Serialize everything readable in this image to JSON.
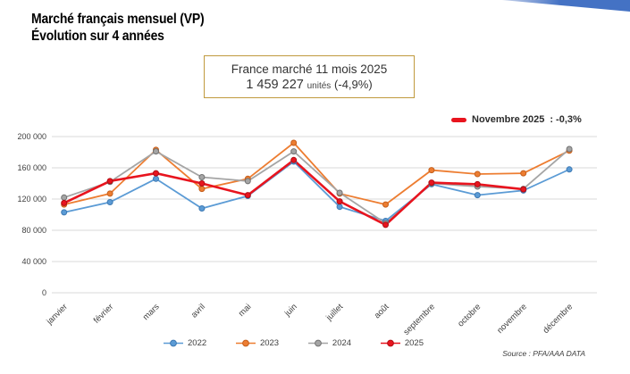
{
  "header": {
    "title_line1": "Marché français mensuel (VP)",
    "title_line2": "Évolution sur 4 années"
  },
  "info_box": {
    "line1": "France marché 11 mois 2025",
    "value": "1 459 227",
    "unit": "unités",
    "delta": "(-4,9%)"
  },
  "highlight_legend": {
    "label": "Novembre 2025",
    "value": ": -0,3%",
    "color": "#e8141e"
  },
  "source": "Source : PFA/AAA DATA",
  "decoration": {
    "corner_color": "#4472c4"
  },
  "chart_data": {
    "type": "line",
    "title": "",
    "xlabel": "",
    "ylabel": "",
    "grid": true,
    "legend_position": "bottom",
    "ylim": [
      0,
      200000
    ],
    "ytick_step": 40000,
    "ytick_labels": [
      "0",
      "40 000",
      "80 000",
      "120 000",
      "160 000",
      "200 000"
    ],
    "categories": [
      "janvier",
      "février",
      "mars",
      "avril",
      "mai",
      "juin",
      "juillet",
      "août",
      "septembre",
      "octobre",
      "novembre",
      "décembre"
    ],
    "series": [
      {
        "name": "2022",
        "color": "#5b9bd5",
        "edge": "#3d79b3",
        "lw": 1.8,
        "values": [
          103000,
          116000,
          146000,
          108000,
          124000,
          168000,
          110000,
          92000,
          139000,
          125000,
          131000,
          158000
        ]
      },
      {
        "name": "2023",
        "color": "#ed7d31",
        "edge": "#c45f1d",
        "lw": 1.8,
        "values": [
          113000,
          127000,
          183000,
          133000,
          146000,
          192000,
          127000,
          113000,
          157000,
          152000,
          153000,
          182000
        ]
      },
      {
        "name": "2024",
        "color": "#a5a5a5",
        "edge": "#727272",
        "lw": 1.8,
        "values": [
          122000,
          142000,
          181000,
          148000,
          143000,
          181000,
          128000,
          89000,
          140000,
          136000,
          133000,
          184000
        ]
      },
      {
        "name": "2025",
        "color": "#e8141e",
        "edge": "#b00d14",
        "lw": 2.6,
        "values": [
          115000,
          143000,
          153000,
          140000,
          125000,
          170000,
          117000,
          87000,
          141000,
          139000,
          132500,
          null
        ]
      }
    ]
  }
}
